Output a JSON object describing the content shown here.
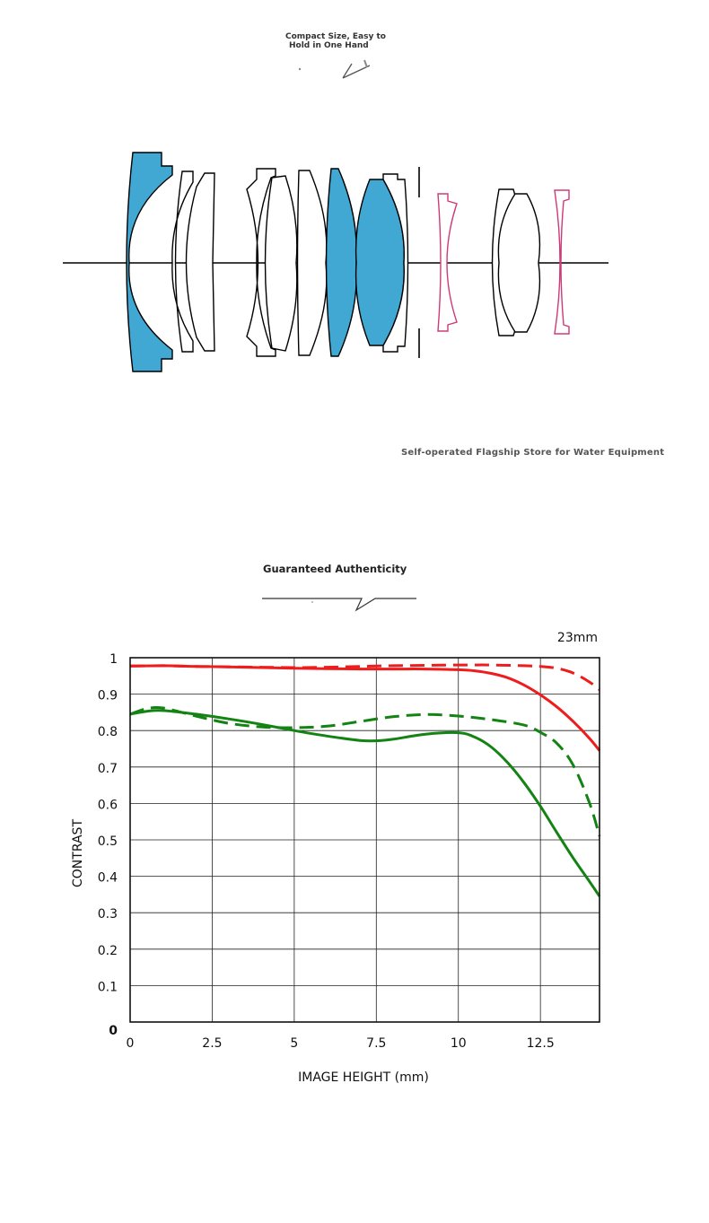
{
  "captions": {
    "top_line1": "Compact Size, Easy to",
    "top_line2": "Hold in One Hand",
    "middle": "Self-operated Flagship Store for Water Equipment",
    "bottom": "Guaranteed Authenticity"
  },
  "colors": {
    "lens_fill": "#41a8d3",
    "lens_pink": "#cc3b78",
    "sagittal_line": "#ee1c1c",
    "meridional_line": "#138313",
    "grid": "#222222"
  },
  "chart_data": {
    "type": "line",
    "title": "23mm",
    "xlabel": "IMAGE HEIGHT (mm)",
    "ylabel": "CONTRAST",
    "xlim": [
      0,
      14.3
    ],
    "ylim": [
      0,
      1
    ],
    "x_ticks": [
      "0",
      "2.5",
      "5",
      "7.5",
      "10",
      "12.5"
    ],
    "x_tick_values": [
      0,
      2.5,
      5,
      7.5,
      10,
      12.5
    ],
    "y_ticks": [
      "0",
      "0.1",
      "0.2",
      "0.3",
      "0.4",
      "0.5",
      "0.6",
      "0.7",
      "0.8",
      "0.9",
      "1"
    ],
    "y_tick_values": [
      0,
      0.1,
      0.2,
      0.3,
      0.4,
      0.5,
      0.6,
      0.7,
      0.8,
      0.9,
      1
    ],
    "grid": true,
    "series": [
      {
        "style": "solid",
        "color": "#ee1c1c",
        "x": [
          0,
          1,
          2,
          3,
          4,
          5,
          6,
          7,
          8,
          9,
          10,
          10.5,
          11,
          11.5,
          12,
          12.5,
          13,
          13.5,
          14,
          14.3
        ],
        "y": [
          0.977,
          0.978,
          0.976,
          0.975,
          0.973,
          0.971,
          0.97,
          0.969,
          0.969,
          0.969,
          0.967,
          0.964,
          0.957,
          0.945,
          0.925,
          0.898,
          0.865,
          0.825,
          0.778,
          0.745
        ]
      },
      {
        "style": "dashed",
        "color": "#ee1c1c",
        "x": [
          0,
          1,
          2,
          3,
          4,
          5,
          6,
          7,
          8,
          9,
          10,
          11,
          12,
          12.5,
          13,
          13.5,
          14,
          14.3
        ],
        "y": [
          0.977,
          0.978,
          0.976,
          0.975,
          0.974,
          0.973,
          0.974,
          0.976,
          0.978,
          0.979,
          0.98,
          0.98,
          0.978,
          0.976,
          0.971,
          0.958,
          0.933,
          0.912
        ]
      },
      {
        "style": "solid",
        "color": "#138313",
        "x": [
          0,
          0.5,
          1,
          2,
          3,
          4,
          5,
          6,
          7,
          7.5,
          8,
          9,
          10,
          10.5,
          11,
          11.5,
          12,
          12.5,
          13,
          13.5,
          14,
          14.3
        ],
        "y": [
          0.845,
          0.853,
          0.855,
          0.845,
          0.832,
          0.817,
          0.8,
          0.785,
          0.773,
          0.772,
          0.776,
          0.79,
          0.794,
          0.782,
          0.755,
          0.712,
          0.657,
          0.592,
          0.52,
          0.45,
          0.385,
          0.345
        ]
      },
      {
        "style": "dashed",
        "color": "#138313",
        "x": [
          0,
          0.5,
          1,
          2,
          3,
          4,
          5,
          6,
          7,
          8,
          9,
          10,
          11,
          12,
          12.5,
          13,
          13.5,
          14,
          14.3
        ],
        "y": [
          0.845,
          0.86,
          0.862,
          0.84,
          0.82,
          0.81,
          0.808,
          0.812,
          0.825,
          0.838,
          0.844,
          0.84,
          0.83,
          0.815,
          0.795,
          0.765,
          0.705,
          0.6,
          0.51
        ]
      }
    ]
  }
}
